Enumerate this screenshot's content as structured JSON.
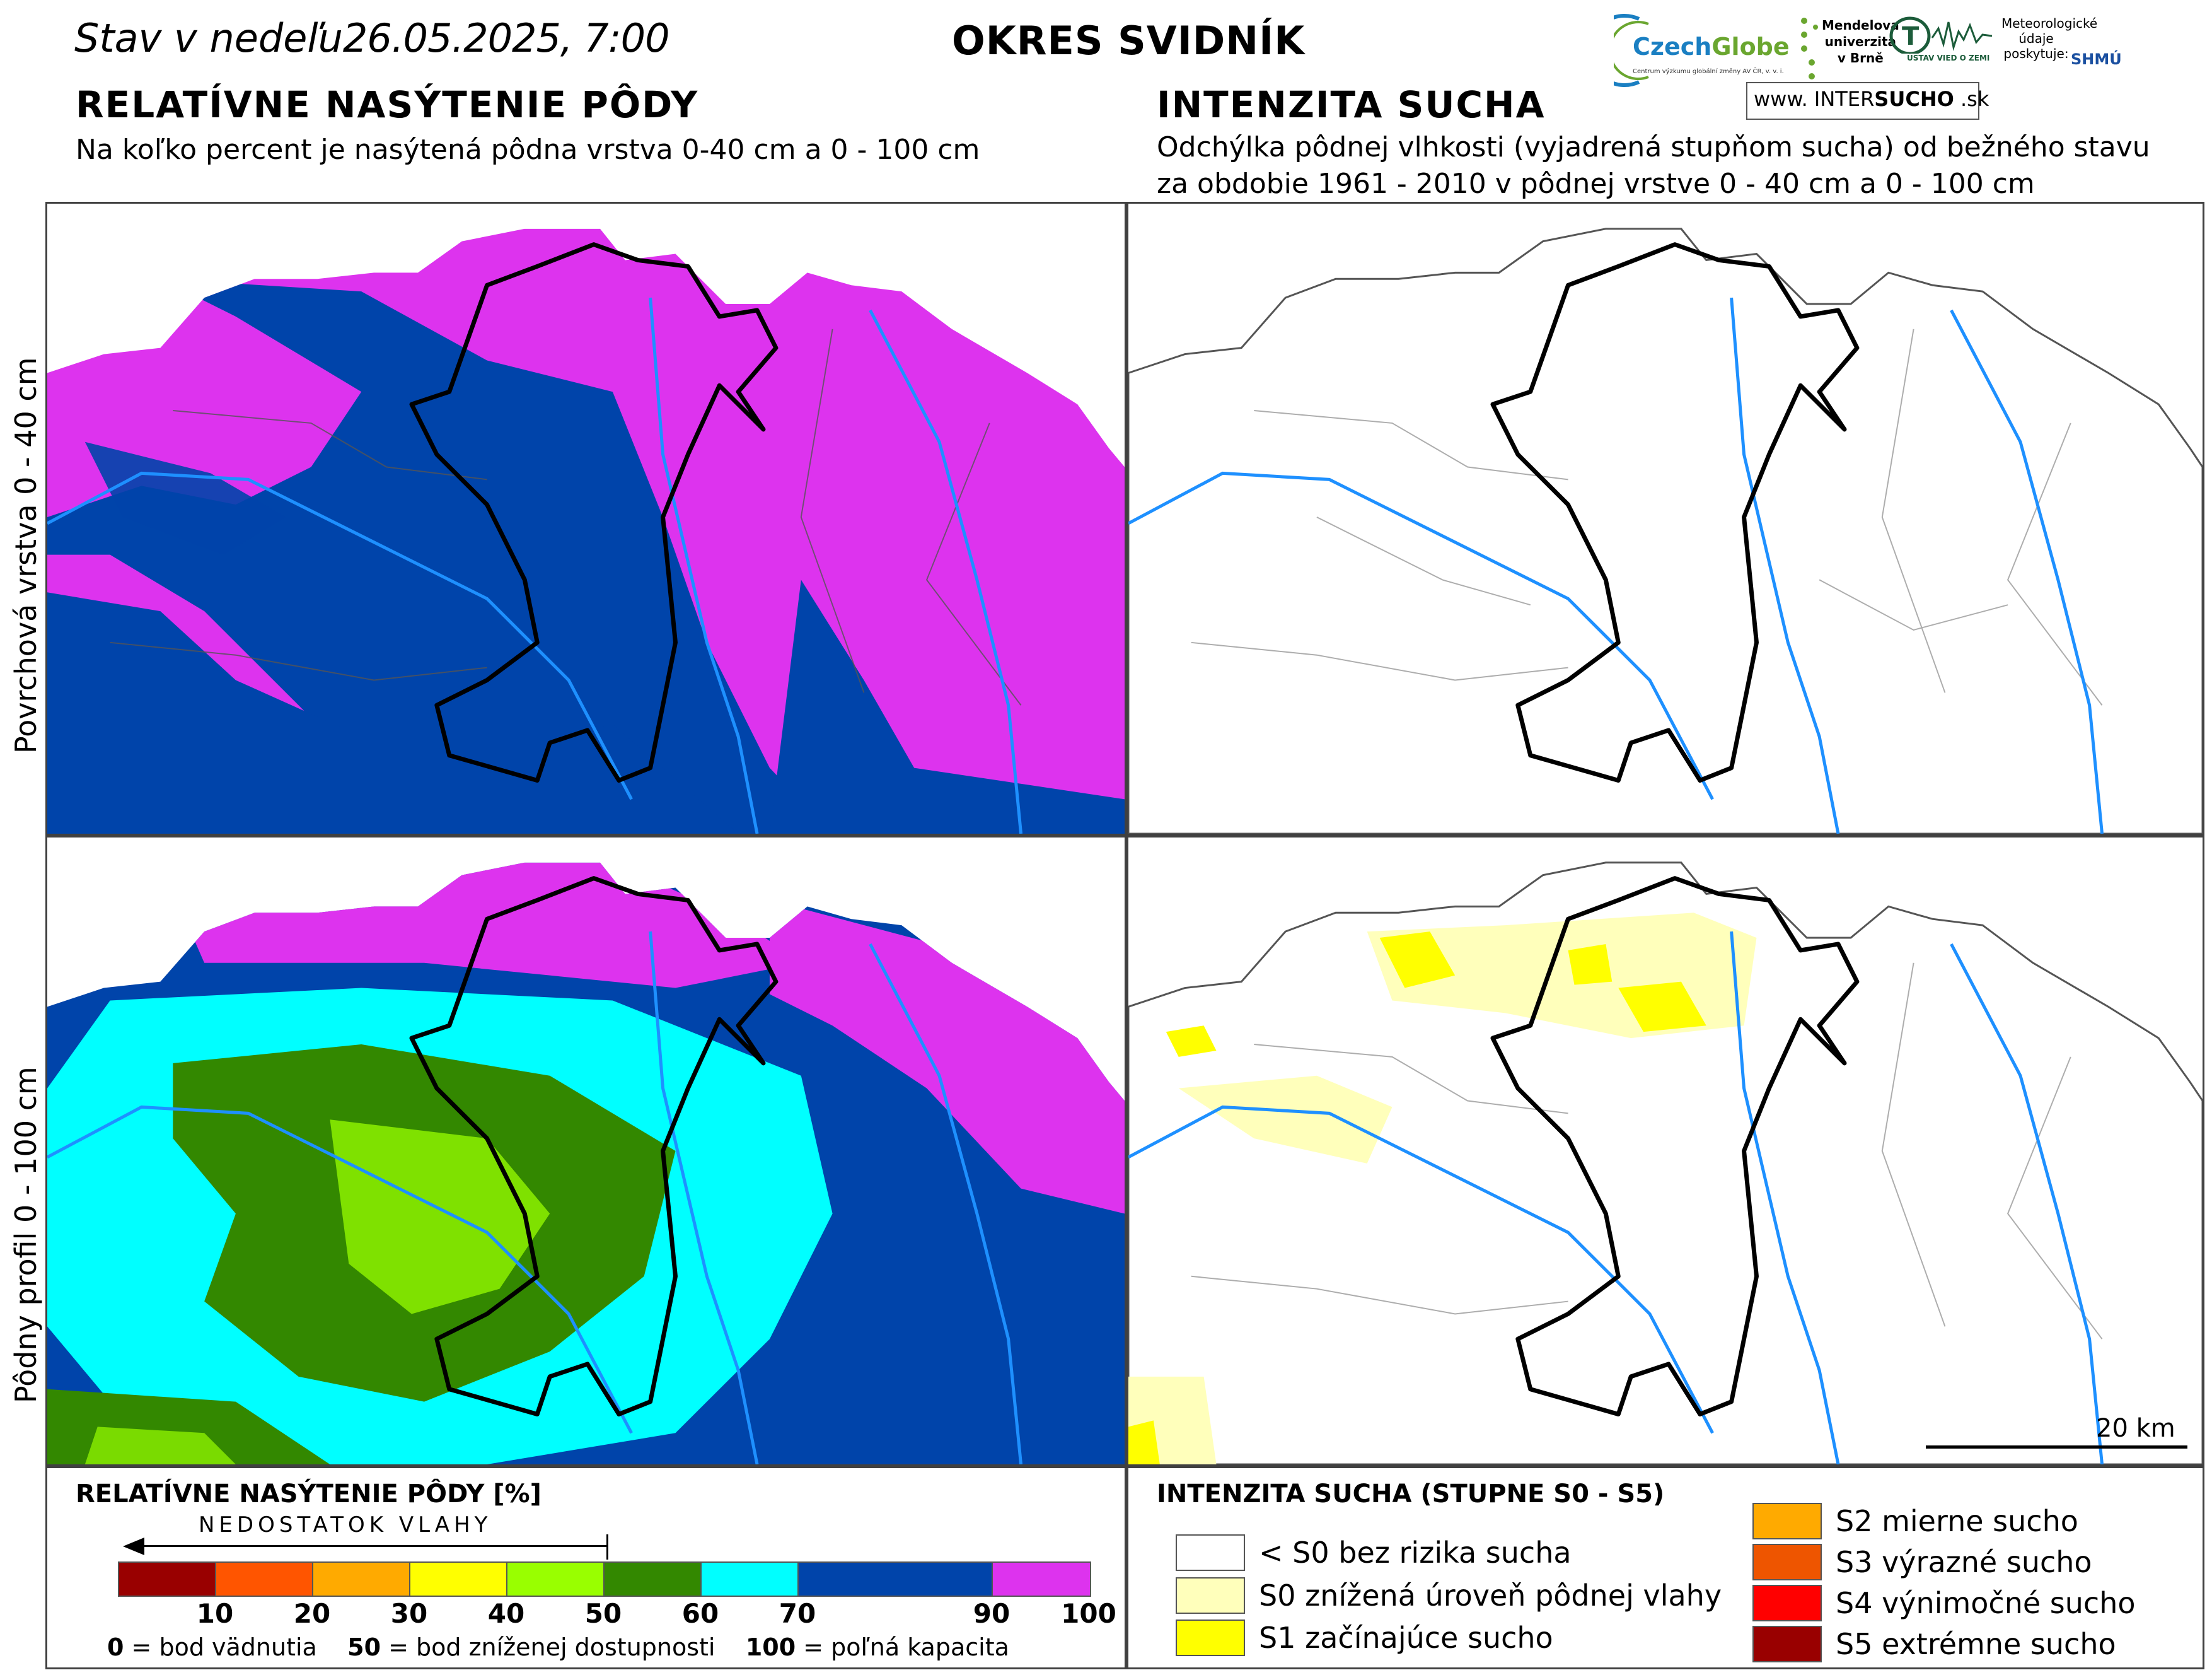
{
  "header": {
    "date_prefix": "Stav v nedeľu",
    "date_value": "26.05.2025, 7:00",
    "district": "OKRES  SVIDNÍK",
    "left_title": "RELATÍVNE NASÝTENIE PÔDY",
    "left_subtitle": "Na koľko percent je nasýtená pôdna vrstva 0-40 cm a 0 - 100 cm",
    "right_title": "INTENZITA SUCHA",
    "right_subtitle_line1": "Odchýlka pôdnej vlhkosti (vyjadrená stupňom sucha) od bežného stavu",
    "right_subtitle_line2": "za obdobie 1961 - 2010 v pôdnej vrstve 0 - 40 cm a 0 - 100 cm"
  },
  "logos": {
    "czechglobe_name_a": "Czech",
    "czechglobe_name_b": "Globe",
    "czechglobe_tagline": "Centrum výzkumu globální změny AV ČR, v. v. i.",
    "mendel_line1": "Mendelova",
    "mendel_line2": "univerzita",
    "mendel_line3": "v Brně",
    "ustav": "ÚSTAV VIED O ZEMI",
    "meteo_line1": "Meteorologické",
    "meteo_line2": "údaje",
    "meteo_line3": "poskytuje:",
    "shmu": "SHMÚ",
    "intersucho_prefix": "www. INTER",
    "intersucho_bold": "SUCHO",
    "intersucho_suffix": " .sk"
  },
  "row_labels": {
    "top": "Povrchová vrstva 0 - 40 cm",
    "bottom": "Pôdny profil 0 - 100 cm"
  },
  "colors": {
    "saturation": [
      "#990000",
      "#ff5500",
      "#ffaa00",
      "#ffff00",
      "#99ff00",
      "#338800",
      "#00ffff",
      "#0044aa",
      "#dd33ee"
    ],
    "drought": [
      "#ffffff",
      "#ffffbb",
      "#ffff00",
      "#ffaa00",
      "#ee5500",
      "#ff0000",
      "#990000"
    ],
    "river": "#1e90ff",
    "district_border": "#000000",
    "municipality_border": "#555555"
  },
  "legend_saturation": {
    "title": "RELATÍVNE NASÝTENIE PÔDY [%]",
    "arrow_label": "NEDOSTATOK VLAHY",
    "ticks": [
      "10",
      "20",
      "30",
      "40",
      "50",
      "60",
      "70",
      "90",
      "100"
    ],
    "note_0_bold": "0",
    "note_0": " = bod vädnutia",
    "note_50_bold": "50",
    "note_50": " = bod zníženej dostupnosti",
    "note_100_bold": "100",
    "note_100": " = poľná kapacita"
  },
  "legend_drought": {
    "title": "INTENZITA SUCHA (STUPNE S0 - S5)",
    "items": [
      {
        "label": "< S0 bez rizika sucha"
      },
      {
        "label": "S0 znížená úroveň pôdnej vlahy"
      },
      {
        "label": "S1 začínajúce sucho"
      },
      {
        "label": "S2 mierne sucho"
      },
      {
        "label": "S3 výrazné sucho"
      },
      {
        "label": "S4 výnimočné sucho"
      },
      {
        "label": "S5 extrémne sucho"
      }
    ]
  },
  "scale": {
    "label": "20 km"
  }
}
